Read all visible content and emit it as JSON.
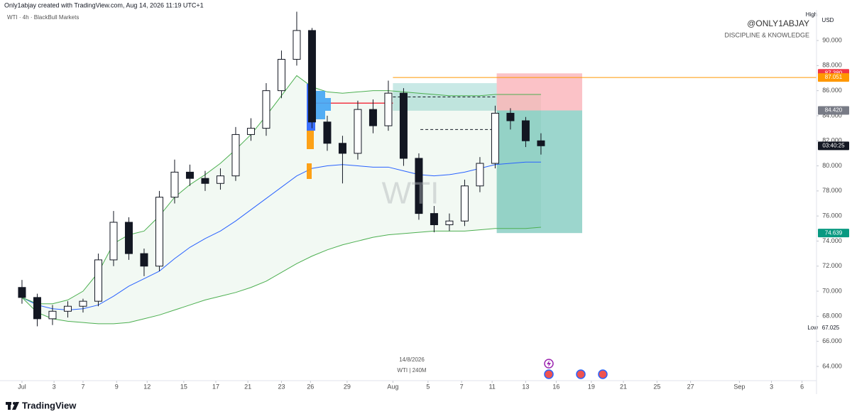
{
  "header": "Only1abjay created with TradingView.com, Aug 14, 2026 11:19 UTC+1",
  "brand": "TradingView",
  "chart_data": {
    "type": "candlestick",
    "symbol": "WTI · 4h · BlackBull Markets",
    "watermark": "WTI",
    "signature": "@ONLY1ABJAY",
    "tagline": "DISCIPLINE & KNOWLEDGE",
    "currency": "USD",
    "high_label": "High",
    "low_label": "Low",
    "date_stamp": "14/8/2026",
    "interval_stamp": "WTI | 240M",
    "x": [
      0,
      1,
      2,
      3,
      4,
      5,
      6,
      7,
      8,
      9,
      10,
      11,
      12,
      13,
      14,
      15,
      16,
      17,
      18,
      19,
      20,
      21,
      22,
      23,
      24,
      25,
      26,
      27,
      28,
      29,
      30,
      31,
      32,
      33,
      34
    ],
    "open": [
      70.3,
      69.5,
      67.8,
      68.4,
      68.8,
      69.2,
      72.5,
      75.5,
      73.0,
      72.0,
      77.5,
      79.5,
      79.0,
      78.6,
      79.2,
      82.5,
      83.0,
      86.0,
      88.5,
      90.8,
      83.5,
      81.8,
      81.0,
      84.5,
      83.2,
      85.8,
      80.6,
      76.2,
      75.3,
      75.6,
      78.4,
      80.2,
      84.2,
      83.6,
      82.0
    ],
    "high": [
      70.9,
      69.8,
      68.9,
      69.2,
      69.4,
      73.0,
      76.4,
      75.9,
      73.4,
      78.0,
      80.5,
      80.1,
      79.6,
      79.8,
      83.1,
      83.8,
      86.6,
      89.2,
      92.3,
      91.0,
      84.0,
      82.4,
      85.2,
      85.3,
      86.8,
      86.2,
      81.0,
      76.8,
      76.2,
      78.9,
      80.7,
      84.8,
      84.6,
      83.9,
      82.6
    ],
    "low": [
      69.0,
      67.2,
      67.3,
      67.9,
      68.3,
      68.8,
      72.0,
      72.5,
      71.2,
      71.6,
      77.0,
      78.4,
      78.0,
      78.1,
      78.8,
      82.0,
      82.4,
      85.4,
      88.0,
      83.0,
      81.2,
      78.6,
      80.5,
      82.6,
      82.8,
      80.0,
      75.7,
      74.7,
      74.8,
      75.2,
      77.9,
      79.8,
      82.9,
      81.5,
      80.9
    ],
    "close": [
      69.5,
      67.8,
      68.4,
      68.8,
      69.2,
      72.5,
      75.5,
      73.0,
      72.0,
      77.5,
      79.5,
      79.0,
      78.6,
      79.2,
      82.5,
      83.0,
      86.0,
      88.5,
      90.8,
      83.5,
      81.8,
      81.0,
      84.5,
      83.2,
      85.8,
      80.6,
      76.2,
      75.3,
      75.6,
      78.4,
      80.2,
      84.2,
      83.6,
      82.0,
      81.6
    ],
    "up_color": "#ffffff",
    "down_color": "#131722",
    "series": [
      {
        "color": "#2962ff",
        "values": [
          69.5,
          68.9,
          68.6,
          68.5,
          68.6,
          68.9,
          69.6,
          70.4,
          71.0,
          71.6,
          72.6,
          73.5,
          74.2,
          74.8,
          75.6,
          76.5,
          77.4,
          78.3,
          79.2,
          79.8,
          80.0,
          80.1,
          80.0,
          79.9,
          79.9,
          79.6,
          79.3,
          79.2,
          79.3,
          79.5,
          79.8,
          80.1,
          80.2,
          80.3,
          80.3
        ]
      },
      {
        "color": "#4caf50",
        "values": [
          69.5,
          69.0,
          69.0,
          69.3,
          70.0,
          71.5,
          73.8,
          74.5,
          74.8,
          76.0,
          77.5,
          78.5,
          79.3,
          80.2,
          81.3,
          82.5,
          84.0,
          85.6,
          87.2,
          86.3,
          85.9,
          85.8,
          85.9,
          86.0,
          86.0,
          85.9,
          85.8,
          85.7,
          85.6,
          85.6,
          85.6,
          85.7,
          85.7,
          85.7,
          85.7
        ]
      },
      {
        "color": "#4caf50",
        "values": [
          69.5,
          68.3,
          67.8,
          67.6,
          67.5,
          67.4,
          67.4,
          67.5,
          67.8,
          68.1,
          68.5,
          68.9,
          69.3,
          69.6,
          69.9,
          70.3,
          70.8,
          71.5,
          72.2,
          72.8,
          73.3,
          73.7,
          74.0,
          74.3,
          74.5,
          74.6,
          74.7,
          74.8,
          74.8,
          74.8,
          74.9,
          75.0,
          75.0,
          75.0,
          75.1
        ]
      }
    ],
    "position": {
      "x": [
        31.1,
        36.7
      ],
      "stop": 87.38,
      "entry": 84.42,
      "target": 74.639
    },
    "range_box": {
      "x": [
        24.3,
        31.1
      ],
      "top": 86.6,
      "bottom": 84.4
    },
    "level_line": {
      "x": 24.3,
      "value": 87.051,
      "color": "#ff9800"
    },
    "dashed_lines": [
      {
        "x": [
          24.3,
          31.1
        ],
        "value": 85.5
      },
      {
        "x": [
          26.1,
          31.1
        ],
        "value": 82.9
      }
    ],
    "poc_line": {
      "x": [
        19.0,
        24.3
      ],
      "value": 85.0,
      "color": "#f23645"
    },
    "price_labels": [
      {
        "value": 87.38,
        "label": "87.380",
        "color": "#f23645"
      },
      {
        "value": 87.051,
        "label": "87.051",
        "color": "#ff9800"
      },
      {
        "value": 84.42,
        "label": "84.420",
        "color": "#787b86"
      },
      {
        "value": 81.6,
        "label": "03:40:25",
        "color": "#131722"
      },
      {
        "value": 74.639,
        "label": "74.639",
        "color": "#089981"
      }
    ],
    "low_price": {
      "value": 67.025,
      "label": "67.025"
    },
    "xlim": [
      -1.44,
      52.05
    ],
    "ylim": [
      62.92,
      92.44
    ],
    "yticks": [
      {
        "value": 64,
        "label": "64.000"
      },
      {
        "value": 66,
        "label": "66.000"
      },
      {
        "value": 68,
        "label": "68.000"
      },
      {
        "value": 70,
        "label": "70.000"
      },
      {
        "value": 72,
        "label": "72.000"
      },
      {
        "value": 74,
        "label": "74.000"
      },
      {
        "value": 76,
        "label": "76.000"
      },
      {
        "value": 78,
        "label": "78.000"
      },
      {
        "value": 80,
        "label": "80.000"
      },
      {
        "value": 82,
        "label": "82.000"
      },
      {
        "value": 84,
        "label": "84.000"
      },
      {
        "value": 86,
        "label": "86.000"
      },
      {
        "value": 88,
        "label": "88.000"
      },
      {
        "value": 90,
        "label": "90.000"
      }
    ],
    "xticks": [
      {
        "value": 0,
        "label": "Jul"
      },
      {
        "value": 2.1,
        "label": "3"
      },
      {
        "value": 4.0,
        "label": "7"
      },
      {
        "value": 6.2,
        "label": "9"
      },
      {
        "value": 8.2,
        "label": "12"
      },
      {
        "value": 10.6,
        "label": "15"
      },
      {
        "value": 12.7,
        "label": "17"
      },
      {
        "value": 14.8,
        "label": "21"
      },
      {
        "value": 17.0,
        "label": "23"
      },
      {
        "value": 18.9,
        "label": "26"
      },
      {
        "value": 21.3,
        "label": "29"
      },
      {
        "value": 24.3,
        "label": "Aug"
      },
      {
        "value": 26.6,
        "label": "5"
      },
      {
        "value": 28.8,
        "label": "7"
      },
      {
        "value": 30.8,
        "label": "11"
      },
      {
        "value": 33.0,
        "label": "13"
      },
      {
        "value": 35.0,
        "label": "16"
      },
      {
        "value": 37.3,
        "label": "19"
      },
      {
        "value": 39.4,
        "label": "21"
      },
      {
        "value": 41.6,
        "label": "25"
      },
      {
        "value": 43.8,
        "label": "27"
      },
      {
        "value": 47.0,
        "label": "Sep"
      },
      {
        "value": 49.1,
        "label": "3"
      },
      {
        "value": 51.1,
        "label": "6"
      }
    ]
  }
}
